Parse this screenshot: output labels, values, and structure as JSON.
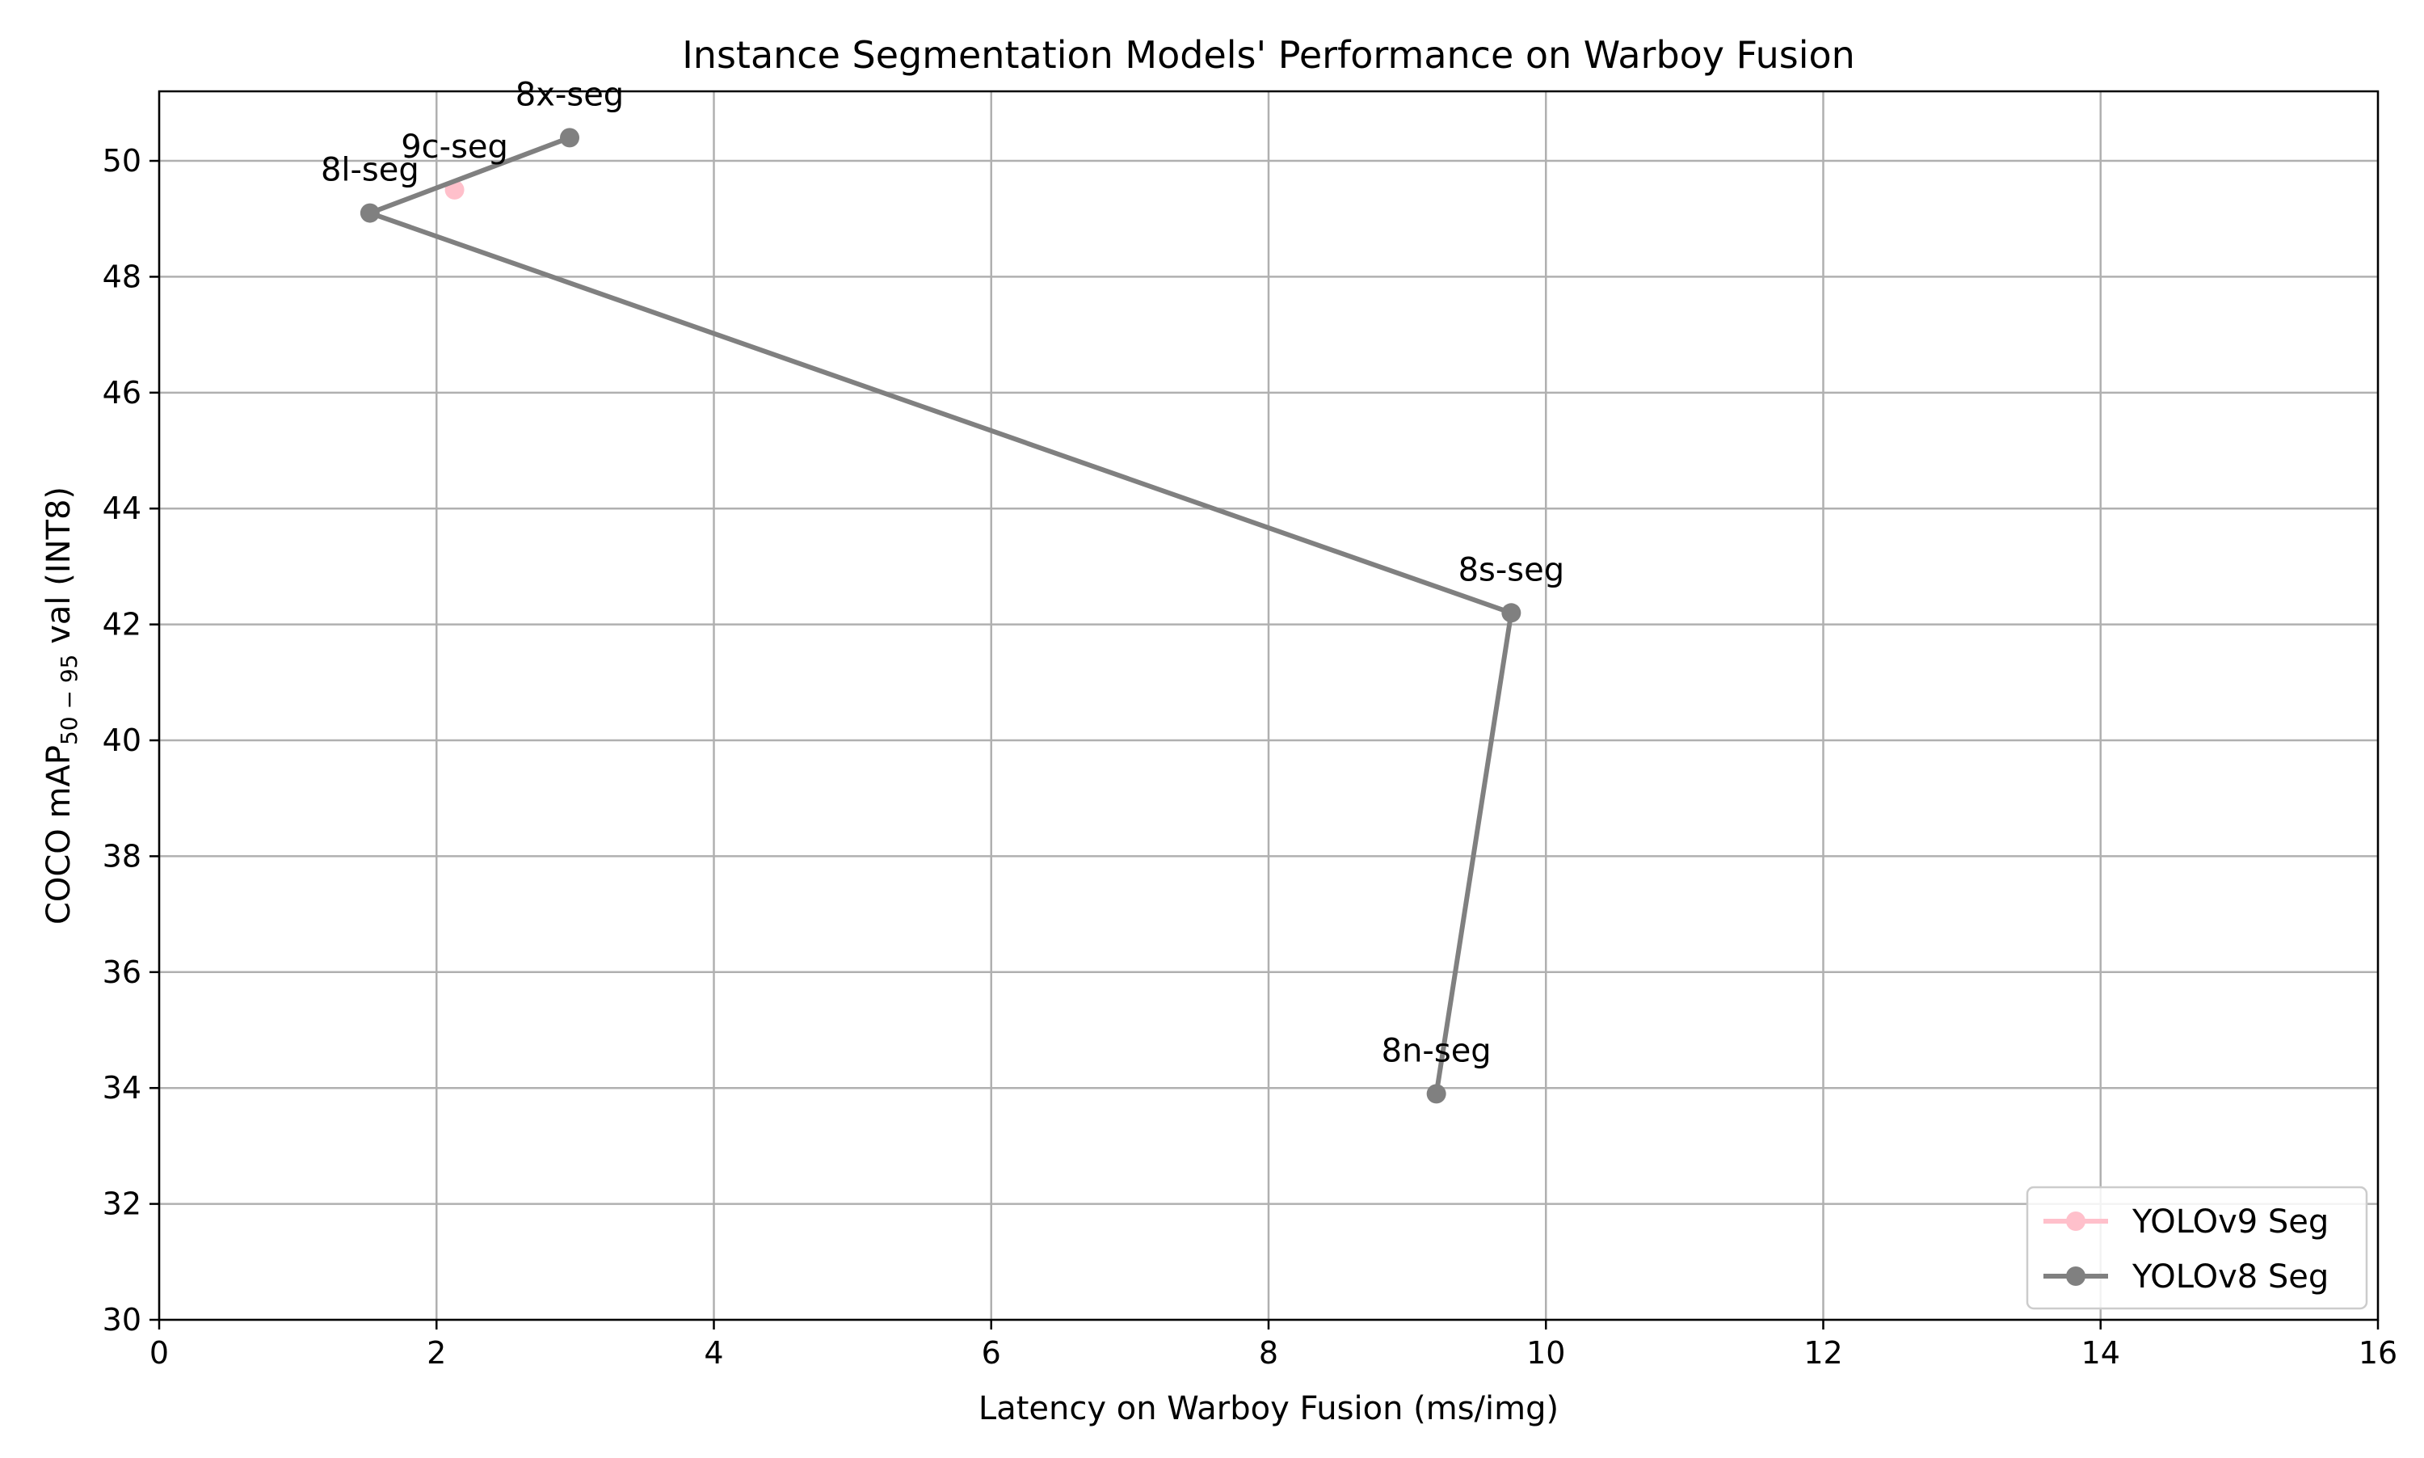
{
  "chart_data": {
    "type": "line",
    "title": "Instance Segmentation Models' Performance on Warboy Fusion",
    "xlabel": "Latency on Warboy Fusion (ms/img)",
    "ylabel": {
      "prefix": "COCO mAP",
      "subscript": "50 − 95",
      "suffix": " val (INT8)"
    },
    "xlim": [
      0,
      16
    ],
    "ylim": [
      30,
      51.2
    ],
    "x_ticks": [
      0,
      2,
      4,
      6,
      8,
      10,
      12,
      14,
      16
    ],
    "y_ticks": [
      30,
      32,
      34,
      36,
      38,
      40,
      42,
      44,
      46,
      48,
      50
    ],
    "grid": true,
    "legend_position": "bottom-right",
    "series": [
      {
        "name": "YOLOv9 Seg",
        "color": "#ffc0cb",
        "points": [
          {
            "x": 2.13,
            "y": 49.5,
            "label": "9c-seg"
          }
        ]
      },
      {
        "name": "YOLOv8 Seg",
        "color": "#808080",
        "points": [
          {
            "x": 9.21,
            "y": 33.9,
            "label": "8n-seg"
          },
          {
            "x": 9.75,
            "y": 42.2,
            "label": "8s-seg"
          },
          {
            "x": 1.52,
            "y": 49.1,
            "label": "8l-seg"
          },
          {
            "x": 2.96,
            "y": 50.4,
            "label": "8x-seg"
          }
        ]
      }
    ]
  }
}
